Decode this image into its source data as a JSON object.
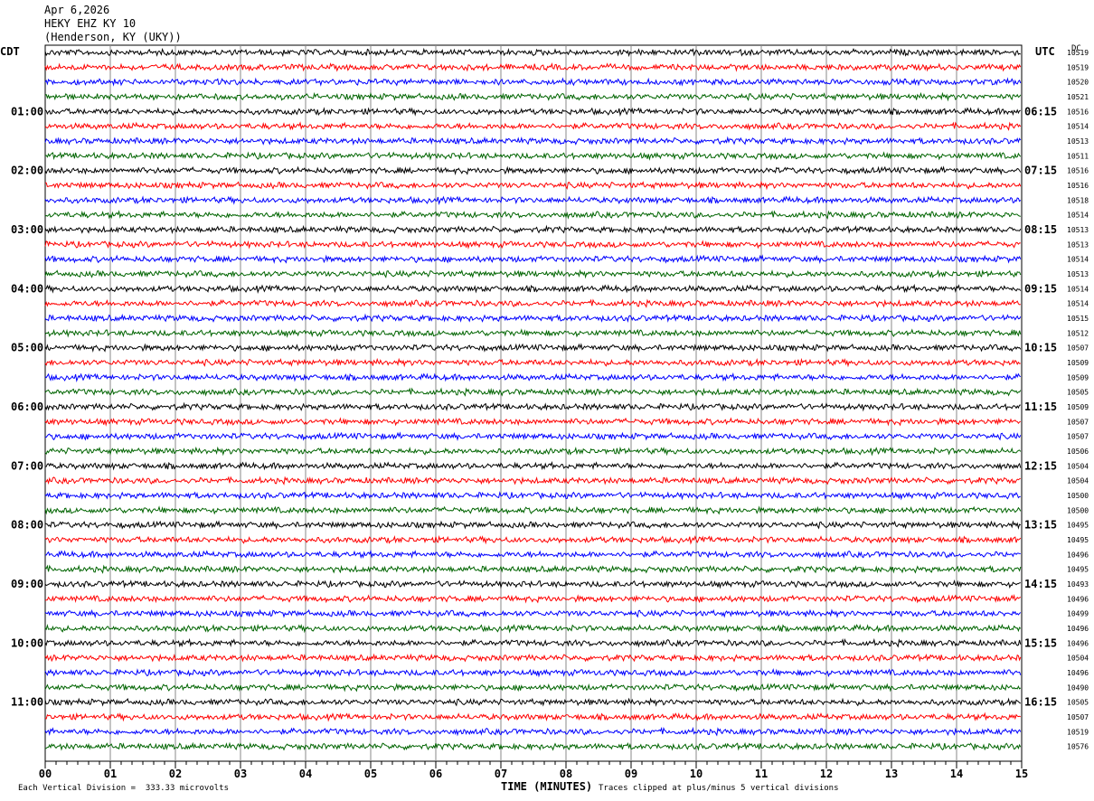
{
  "header": {
    "date": "Apr 6,2026",
    "station": "HEKY EHZ KY 10",
    "location": "(Henderson, KY (UKY))"
  },
  "left_tz": "CDT",
  "right_tz": "UTC",
  "dc_label": "DC",
  "footer": {
    "scale": "Each Vertical Division =  333.33 microvolts",
    "clip": "Traces clipped at plus/minus 5 vertical divisions"
  },
  "colors": {
    "trace_cycle": [
      "#000000",
      "#ff0000",
      "#0000ff",
      "#006400"
    ],
    "grid": "#000000"
  },
  "chart_data": {
    "type": "line",
    "title": "HEKY EHZ KY 10",
    "xlabel": "TIME (MINUTES)",
    "xlim": [
      0,
      15
    ],
    "x_ticks": [
      "00",
      "01",
      "02",
      "03",
      "04",
      "05",
      "06",
      "07",
      "08",
      "09",
      "10",
      "11",
      "12",
      "13",
      "14",
      "15"
    ],
    "left_hour_labels": [
      "01:00",
      "02:00",
      "03:00",
      "04:00",
      "05:00",
      "06:00",
      "07:00",
      "08:00",
      "09:00",
      "10:00",
      "11:00"
    ],
    "right_hour_labels": [
      "06:15",
      "07:15",
      "08:15",
      "09:15",
      "10:15",
      "11:15",
      "12:15",
      "13:15",
      "14:15",
      "15:15",
      "16:15"
    ],
    "dc_values": [
      10519,
      10519,
      10520,
      10521,
      10516,
      10514,
      10513,
      10511,
      10516,
      10516,
      10518,
      10514,
      10513,
      10513,
      10514,
      10513,
      10514,
      10514,
      10515,
      10512,
      10507,
      10509,
      10509,
      10505,
      10509,
      10507,
      10507,
      10506,
      10504,
      10504,
      10500,
      10500,
      10495,
      10495,
      10496,
      10495,
      10493,
      10496,
      10499,
      10496,
      10496,
      10504,
      10496,
      10490,
      10505,
      10507,
      10519,
      10576
    ],
    "traces": [
      {
        "minutes_active": [
          0,
          15
        ],
        "level": "moderate"
      }
    ],
    "clipping_divisions": 5,
    "microvolts_per_division": 333.33
  }
}
